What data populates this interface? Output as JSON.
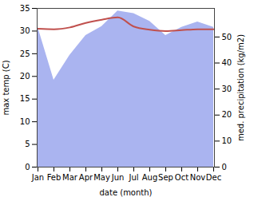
{
  "chart_data": {
    "type": "line",
    "x_label": "date (month)",
    "y_label": "max temp (C)",
    "y2_label": "med. precipitation (kg/m2)",
    "categories": [
      "Jan",
      "Feb",
      "Mar",
      "Apr",
      "May",
      "Jun",
      "Jul",
      "Aug",
      "Sep",
      "Oct",
      "Nov",
      "Dec"
    ],
    "series": [
      {
        "type": "area",
        "axis": "y2",
        "color": "#aab4f0",
        "values": [
          53.7,
          33.4,
          43,
          50.6,
          54,
          60,
          59,
          56,
          50.6,
          53.7,
          55.8,
          53.7
        ]
      },
      {
        "type": "line",
        "color": "#c0504d",
        "values": [
          30.5,
          30.4,
          30.8,
          31.8,
          32.5,
          33.0,
          31.0,
          30.3,
          30.0,
          30.2,
          30.4,
          30.4
        ]
      }
    ],
    "ylim": [
      0,
      35
    ],
    "yticks": [
      0,
      5,
      10,
      15,
      20,
      25,
      30,
      35
    ],
    "y2lim": [
      0,
      61
    ],
    "y2ticks": [
      0,
      10,
      20,
      30,
      40,
      50
    ],
    "grid": false
  }
}
